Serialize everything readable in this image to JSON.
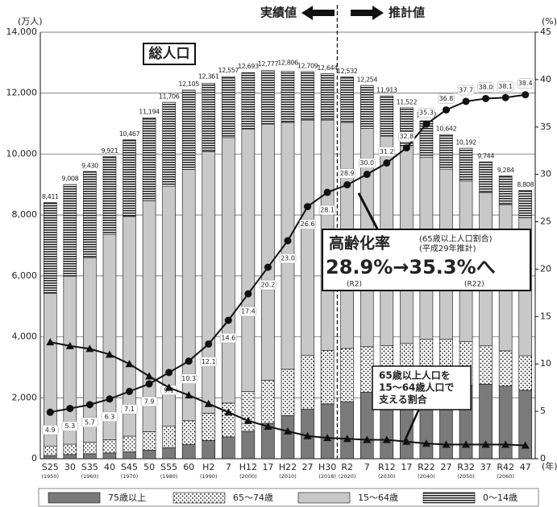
{
  "chart_data": {
    "type": "stacked_bar_line",
    "y_label": "(万人)",
    "y2_label": "(%)",
    "x_label": "(年)",
    "categories": [
      "S25",
      "30",
      "S35",
      "40",
      "S45",
      "50",
      "S55",
      "60",
      "H2",
      "7",
      "H12",
      "17",
      "H22",
      "27",
      "H30",
      "R2",
      "7",
      "R12",
      "17",
      "R22",
      "27",
      "R32",
      "37",
      "R42",
      "47"
    ],
    "category_years": [
      "(1950)",
      null,
      "(1960)",
      null,
      "(1970)",
      null,
      "(1980)",
      null,
      "(1990)",
      null,
      "(2000)",
      null,
      "(2010)",
      null,
      "(2018)",
      "(2020)",
      null,
      "(2030)",
      null,
      "(2040)",
      null,
      "(2050)",
      null,
      "(2060)",
      null
    ],
    "series": [
      {
        "name": "75歳以上",
        "color": "#7a7a7a",
        "pattern": "solid",
        "values": [
          107,
          139,
          163,
          189,
          224,
          284,
          366,
          471,
          597,
          717,
          901,
          1164,
          1419,
          1632,
          1798,
          1872,
          2180,
          2288,
          2260,
          2239,
          2277,
          2417,
          2446,
          2387,
          2248
        ]
      },
      {
        "name": "65～74歳",
        "color": "#ffffff",
        "pattern": "dots",
        "values": [
          309,
          336,
          377,
          435,
          516,
          603,
          699,
          776,
          892,
          1109,
          1301,
          1412,
          1517,
          1755,
          1760,
          1747,
          1497,
          1428,
          1522,
          1681,
          1643,
          1424,
          1258,
          1154,
          1133
        ]
      },
      {
        "name": "15～64歳",
        "color": "#c8c8c8",
        "pattern": "solid",
        "values": [
          5017,
          5517,
          6047,
          6744,
          7212,
          7581,
          7884,
          8251,
          8590,
          8716,
          8622,
          8409,
          8103,
          7728,
          7545,
          7406,
          7170,
          6875,
          6494,
          5978,
          5584,
          5275,
          5028,
          4793,
          4529
        ]
      },
      {
        "name": "0～14歳",
        "color": "#ffffff",
        "pattern": "stripes",
        "values": [
          2978,
          3012,
          2843,
          2553,
          2515,
          2722,
          2751,
          2603,
          2249,
          2001,
          1847,
          1752,
          1680,
          1595,
          1541,
          1507,
          1407,
          1321,
          1246,
          1194,
          1138,
          1077,
          1012,
          951,
          898
        ]
      }
    ],
    "totals": {
      "values": [
        8411,
        9008,
        9430,
        9921,
        10467,
        11194,
        11706,
        12105,
        12361,
        12557,
        12693,
        12777,
        12806,
        12709,
        12644,
        12532,
        12254,
        11913,
        11522,
        11092,
        10642,
        10192,
        9744,
        9284,
        8808
      ],
      "value_labels": [
        "8,411",
        "9,008",
        "9,430",
        "9,921",
        "10,467",
        "11,194",
        "11,706",
        "12,105",
        "12,361",
        "12,557",
        "12,693",
        "12,777",
        "12,806",
        "12,709",
        "12,644",
        "12,532",
        "12,254",
        "11,913",
        "11,522",
        "11,092",
        "10,642",
        "10,192",
        "9,744",
        "9,284",
        "8,808"
      ]
    },
    "lines": [
      {
        "name": "高齢化率",
        "axis": "y2",
        "color": "#111111",
        "marker": "circle",
        "values": [
          4.9,
          5.3,
          5.7,
          6.3,
          7.1,
          7.9,
          9.1,
          10.3,
          12.1,
          14.6,
          17.4,
          20.2,
          23.0,
          26.6,
          28.1,
          28.9,
          30.0,
          31.2,
          32.8,
          35.3,
          36.8,
          37.7,
          38.0,
          38.1,
          38.4
        ],
        "value_labels": [
          "4.9",
          "5.3",
          "5.7",
          "6.3",
          "7.1",
          "7.9",
          "9.1",
          "10.3",
          "12.1",
          "14.6",
          "17.4",
          "20.2",
          "23.0",
          "26.6",
          "28.1",
          "28.9",
          "30.0",
          "31.2",
          "32.8",
          "35.3",
          "36.8",
          "37.7",
          "38.0",
          "38.1",
          "38.4"
        ]
      },
      {
        "axis": "y2",
        "color": "#111111",
        "marker": "triangle",
        "values": [
          12.3,
          11.9,
          11.6,
          11.0,
          10.0,
          8.7,
          7.5,
          6.7,
          5.8,
          4.9,
          4.0,
          3.4,
          2.9,
          2.4,
          2.2,
          2.1,
          2.0,
          2.0,
          1.8,
          1.6,
          1.5,
          1.5,
          1.5,
          1.5,
          1.4
        ]
      }
    ],
    "ylim": [
      0,
      14000
    ],
    "yticks": [
      0,
      {
        "value": 2000,
        "label": "2,000"
      },
      {
        "value": 4000,
        "label": "4,000"
      },
      {
        "value": 6000,
        "label": "6,000"
      },
      {
        "value": 8000,
        "label": "8,000"
      },
      {
        "value": 10000,
        "label": "10,000"
      },
      {
        "value": 12000,
        "label": "12,000"
      },
      {
        "value": 14000,
        "label": "14,000"
      }
    ],
    "y2lim": [
      0,
      45
    ],
    "y2ticks": [
      0,
      5,
      10,
      15,
      20,
      25,
      30,
      35,
      40,
      45
    ],
    "grid": true,
    "annotations": {
      "actual": "実績値",
      "forecast": "推計値",
      "total_label": "総人口",
      "aging_title": "高齢化率",
      "aging_sub1": "(65歳以上人口割合)",
      "aging_sub2": "(平成29年推計)",
      "aging_main": "28.9%→35.3%へ",
      "aging_from": "(R2)",
      "aging_to": "(R22)",
      "support": [
        "65歳以上人口を",
        "15～64歳人口で",
        "支える割合"
      ]
    }
  }
}
